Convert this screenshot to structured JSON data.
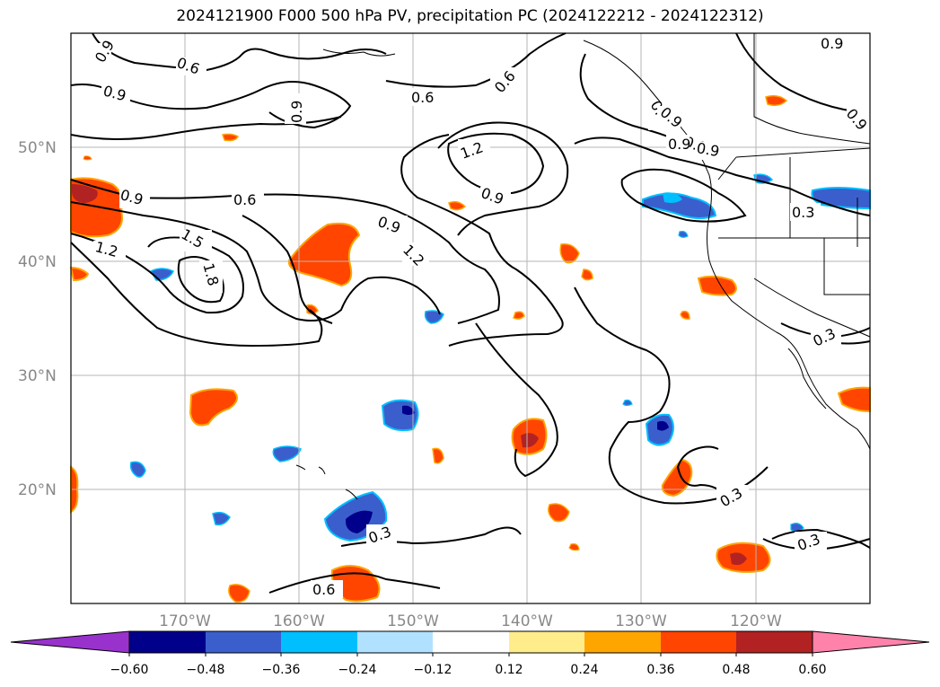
{
  "title": "2024121900 F000 500 hPa PV, precipitation PC (2024122212 - 2024122312)",
  "axes": {
    "lat_labels": [
      "50°N",
      "40°N",
      "30°N",
      "20°N"
    ],
    "lon_labels": [
      "170°W",
      "160°W",
      "150°W",
      "140°W",
      "130°W",
      "120°W"
    ],
    "extent": {
      "lon_min": -180,
      "lon_max": -110,
      "lat_min": 10,
      "lat_max": 60
    }
  },
  "contour_labels": [
    "0.9",
    "0.6",
    "0.9",
    "0.9",
    "0.6",
    "0.6",
    "0.6",
    "1.2",
    "0.9",
    "0.9",
    "0.9",
    "0.6",
    "0.9",
    "0.9",
    "1.2",
    "1.5",
    "1.8",
    "0.9",
    "1.2",
    "0.3",
    "0.3",
    "0.3",
    "0.3",
    "0.3",
    "0.6",
    "0.9",
    "0.9",
    "0.9"
  ],
  "colorbar": {
    "ticks": [
      "−0.60",
      "−0.48",
      "−0.36",
      "−0.24",
      "−0.12",
      "0.12",
      "0.24",
      "0.36",
      "0.48",
      "0.60"
    ],
    "colors": [
      "#9932cc",
      "#00008b",
      "#3a5fcd",
      "#00bfff",
      "#b0e2ff",
      "#ffffff",
      "#ffec8b",
      "#ffa500",
      "#ff4500",
      "#b22222",
      "#ff82ab"
    ]
  }
}
